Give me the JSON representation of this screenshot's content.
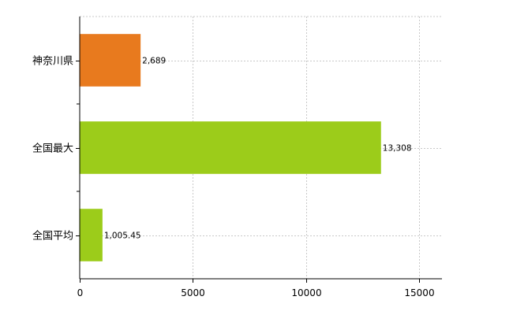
{
  "chart_data": {
    "type": "bar",
    "orientation": "horizontal",
    "categories": [
      "神奈川県",
      "全国最大",
      "全国平均"
    ],
    "values": [
      2689,
      13308,
      1005.45
    ],
    "data_labels": [
      "2,689",
      "13,308",
      "1,005.45"
    ],
    "bar_colors": [
      "#e87a1e",
      "#9ccc1a",
      "#9ccc1a"
    ],
    "xlim": [
      0,
      16000
    ],
    "xticks": [
      0,
      5000,
      10000,
      15000
    ],
    "xtick_labels": [
      "0",
      "5000",
      "10000",
      "15000"
    ],
    "grid": true,
    "legend": "none"
  }
}
